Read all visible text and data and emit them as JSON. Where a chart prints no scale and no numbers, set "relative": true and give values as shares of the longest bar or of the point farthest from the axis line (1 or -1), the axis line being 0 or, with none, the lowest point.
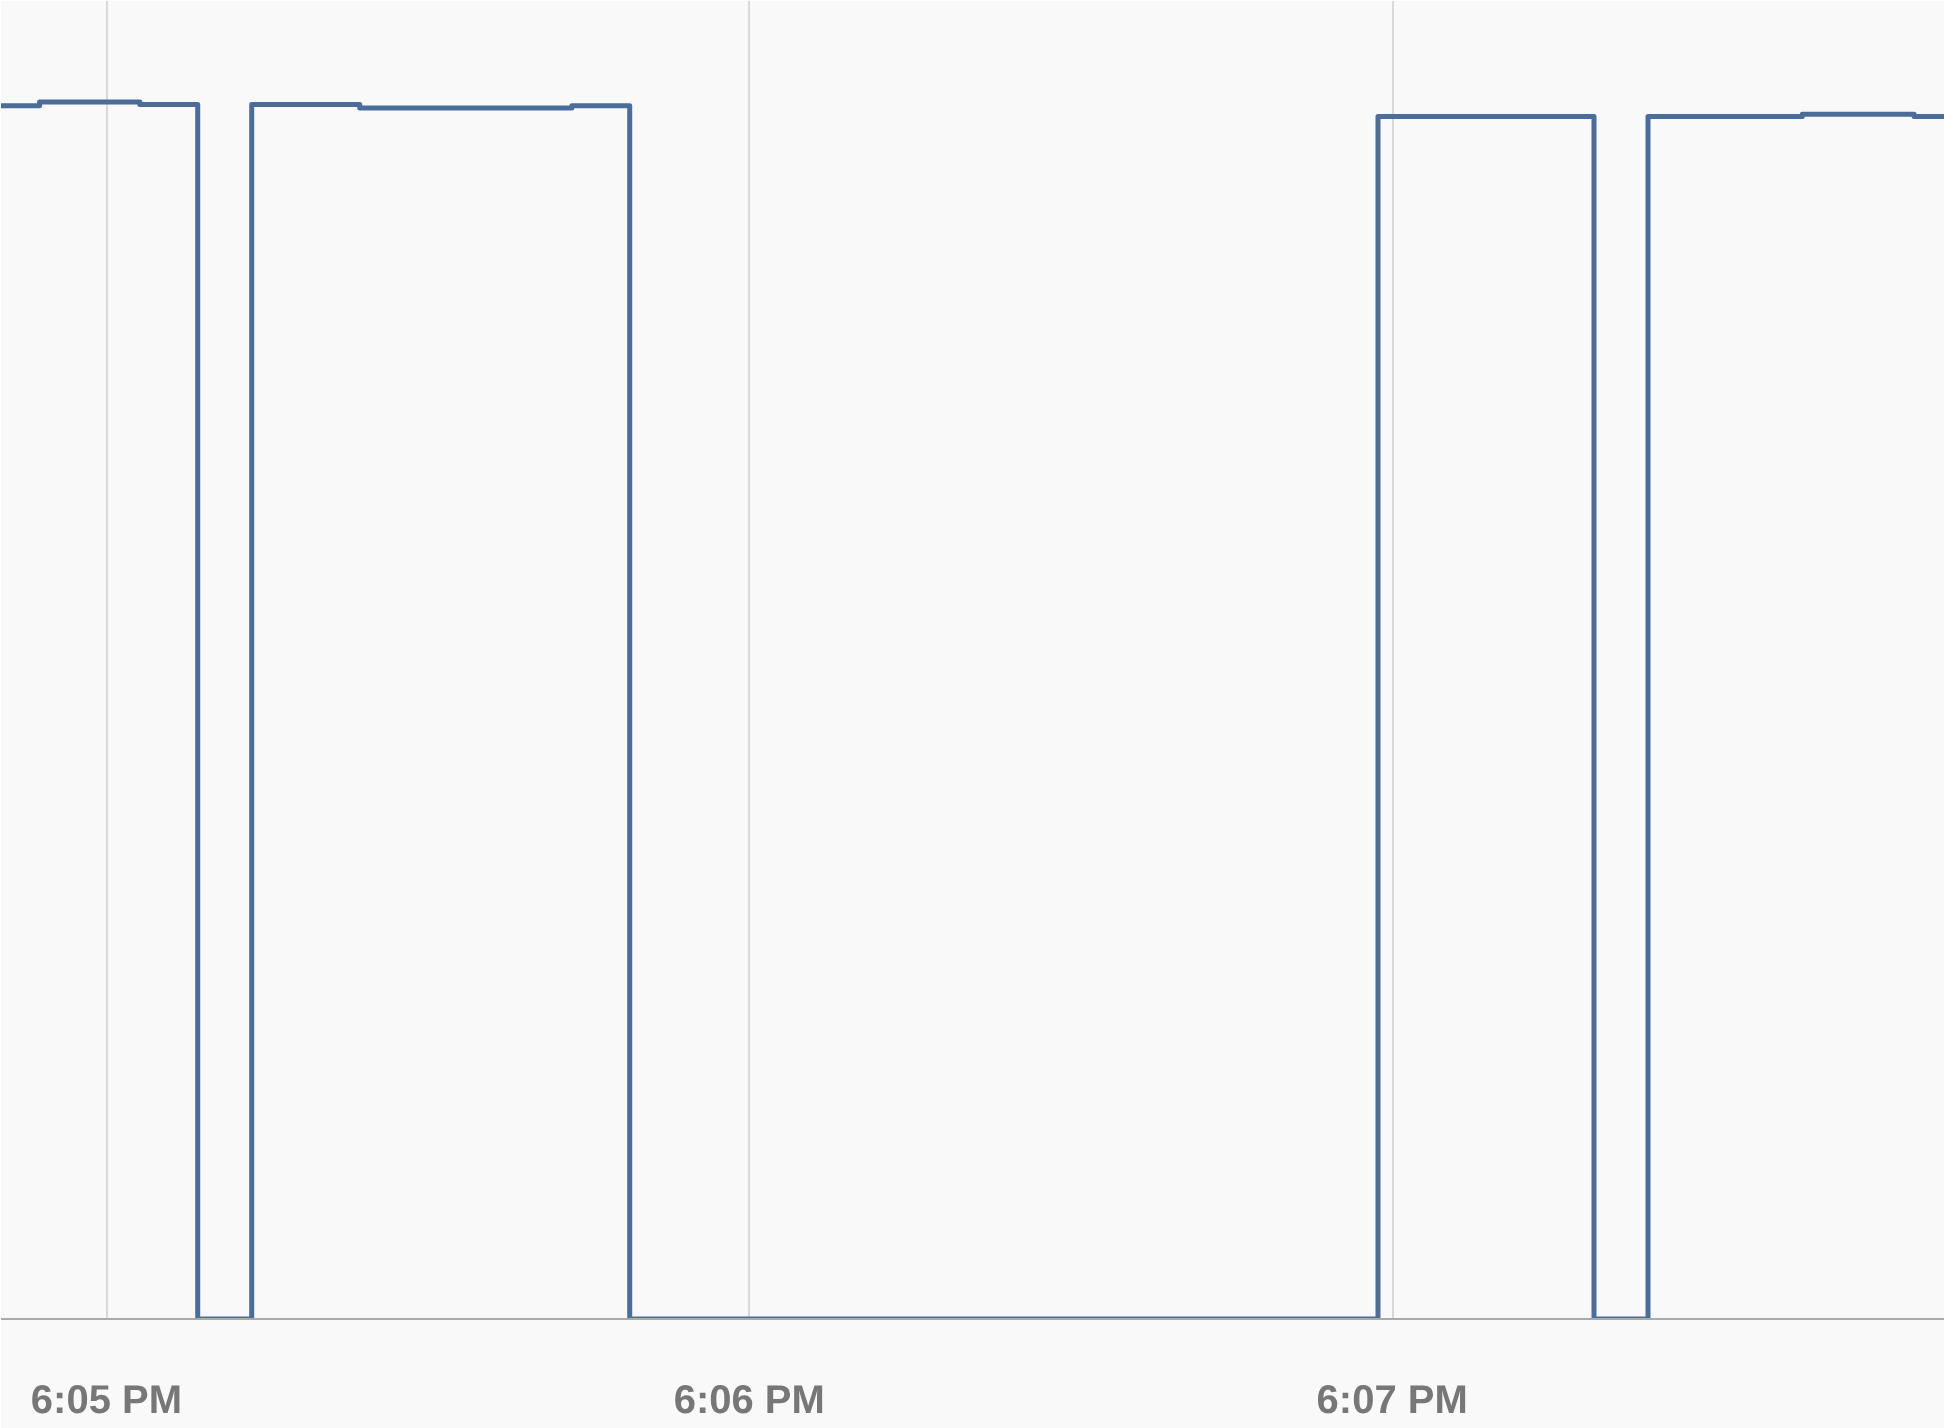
{
  "chart_data": {
    "type": "step",
    "relative": true,
    "x": [
      18.0806,
      18.0816,
      18.0842,
      18.0857,
      18.0871,
      18.0899,
      18.0954,
      18.0969,
      18.1163,
      18.1219,
      18.1233,
      18.1273,
      18.1302,
      18.131
    ],
    "series": [
      {
        "color": "#4a6d9a",
        "values": [
          0.997,
          1.0,
          0.998,
          0,
          0.998,
          0.995,
          0.997,
          0,
          0.988,
          0,
          0.988,
          0.99,
          0.988,
          0.988
        ]
      }
    ],
    "xlim": [
      18.0806,
      18.131
    ],
    "xticks": [
      {
        "value": 18.083333,
        "label": "6:05 PM"
      },
      {
        "value": 18.1,
        "label": "6:06 PM"
      },
      {
        "value": 18.116667,
        "label": "6:07 PM"
      }
    ],
    "grid": "x",
    "marker": "none",
    "line_style": "solid"
  }
}
